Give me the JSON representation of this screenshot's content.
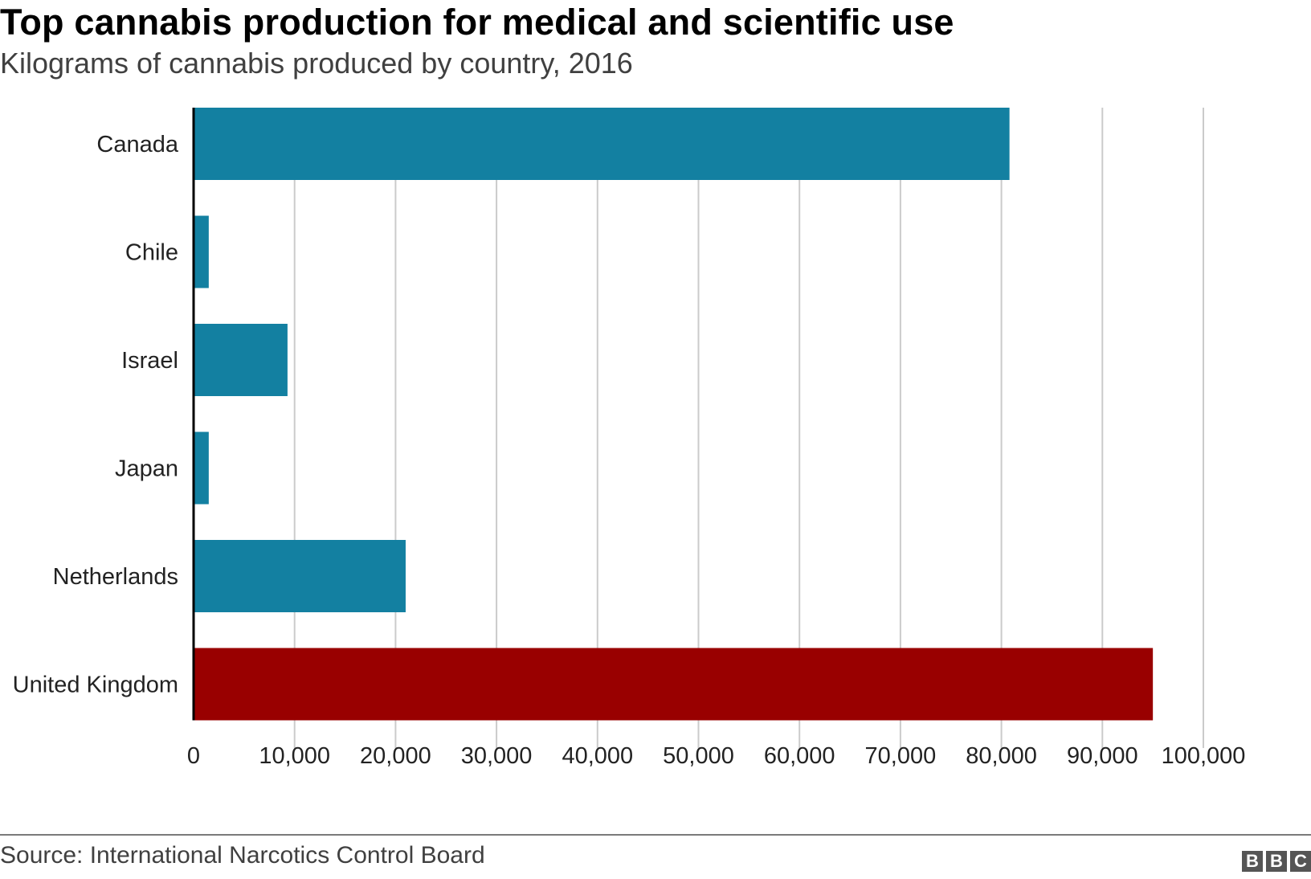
{
  "header": {
    "title": "Top cannabis production for medical and scientific use",
    "subtitle": "Kilograms of cannabis produced by country, 2016"
  },
  "footer": {
    "source": "Source: International Narcotics Control Board",
    "logo": [
      "B",
      "B",
      "C"
    ]
  },
  "colors": {
    "bar_default": "#1380A1",
    "bar_highlight": "#990000",
    "gridline": "#cbcbcb",
    "axis": "#000000"
  },
  "chart_data": {
    "type": "bar",
    "orientation": "horizontal",
    "title": "Top cannabis production for medical and scientific use",
    "subtitle": "Kilograms of cannabis produced by country, 2016",
    "categories": [
      "Canada",
      "Chile",
      "Israel",
      "Japan",
      "Netherlands",
      "United Kingdom"
    ],
    "values": [
      80800,
      1500,
      9300,
      1500,
      21000,
      95000
    ],
    "highlight": [
      "United Kingdom"
    ],
    "xlim": [
      0,
      100000
    ],
    "x_ticks": [
      0,
      10000,
      20000,
      30000,
      40000,
      50000,
      60000,
      70000,
      80000,
      90000,
      100000
    ],
    "x_tick_labels": [
      "0",
      "10,000",
      "20,000",
      "30,000",
      "40,000",
      "50,000",
      "60,000",
      "70,000",
      "80,000",
      "90,000",
      "100,000"
    ],
    "xlabel": "",
    "ylabel": "",
    "grid": "vertical",
    "legend": "none"
  }
}
